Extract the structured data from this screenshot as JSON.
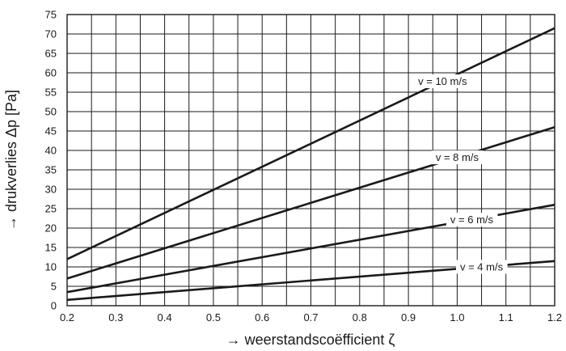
{
  "chart_data": {
    "type": "line",
    "title": "",
    "xlabel": "→ weerstandscoëfficient ζ",
    "ylabel": "→ drukverlies Δp [Pa]",
    "xlim": [
      0.2,
      1.2
    ],
    "ylim": [
      0,
      75
    ],
    "grid": true,
    "x_ticks": [
      0.2,
      0.3,
      0.4,
      0.5,
      0.6,
      0.7,
      0.8,
      0.9,
      1.0,
      1.1,
      1.2
    ],
    "x_tick_labels": [
      "0.2",
      "0.3",
      "0.4",
      "0.5",
      "0.6",
      "0.7",
      "0.8",
      "0.9",
      "1.0",
      "1.1",
      "1.2"
    ],
    "y_ticks": [
      0,
      5,
      10,
      15,
      20,
      25,
      30,
      35,
      40,
      45,
      50,
      55,
      60,
      65,
      70,
      75
    ],
    "x_minor_step": 0.05,
    "x": [
      0.2,
      1.2
    ],
    "series": [
      {
        "name": "v = 10 m/s",
        "values": [
          12.0,
          71.5
        ],
        "label_x": 0.97
      },
      {
        "name": "v = 8 m/s",
        "values": [
          7.0,
          46.0
        ],
        "label_x": 1.0
      },
      {
        "name": "v = 6 m/s",
        "values": [
          3.5,
          26.0
        ],
        "label_x": 1.03
      },
      {
        "name": "v = 4 m/s",
        "values": [
          1.5,
          11.5
        ],
        "label_x": 1.05
      }
    ],
    "line_color": "#1a1a1a"
  }
}
